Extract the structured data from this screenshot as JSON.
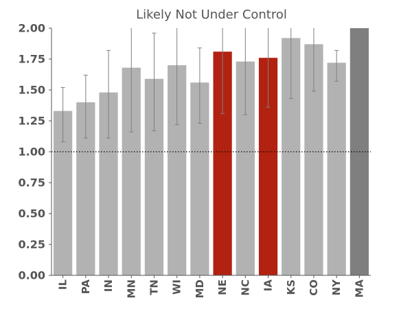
{
  "chart_data": {
    "type": "bar",
    "title": "Likely Not Under Control",
    "xlabel": "",
    "ylabel": "",
    "ylim": [
      0,
      2.0
    ],
    "yticks": [
      "0.00",
      "0.25",
      "0.50",
      "0.75",
      "1.00",
      "1.25",
      "1.50",
      "1.75",
      "2.00"
    ],
    "reference_line": 1.0,
    "categories": [
      "IL",
      "PA",
      "IN",
      "MN",
      "TN",
      "WI",
      "MD",
      "NE",
      "NC",
      "IA",
      "KS",
      "CO",
      "NY",
      "MA"
    ],
    "values": [
      1.33,
      1.4,
      1.48,
      1.68,
      1.59,
      1.7,
      1.56,
      1.81,
      1.73,
      1.76,
      1.92,
      1.87,
      1.72,
      2.0
    ],
    "error_low": [
      1.08,
      1.11,
      1.11,
      1.16,
      1.17,
      1.22,
      1.23,
      1.31,
      1.3,
      1.36,
      1.43,
      1.49,
      1.57,
      null
    ],
    "error_high": [
      1.52,
      1.62,
      1.82,
      2.0,
      1.96,
      2.0,
      1.84,
      2.0,
      2.0,
      2.0,
      2.0,
      2.0,
      1.82,
      null
    ],
    "bar_colors": [
      "#b2b2b2",
      "#b2b2b2",
      "#b2b2b2",
      "#b2b2b2",
      "#b2b2b2",
      "#b2b2b2",
      "#b2b2b2",
      "#b22211",
      "#b2b2b2",
      "#b22211",
      "#b2b2b2",
      "#b2b2b2",
      "#b2b2b2",
      "#7f7f7f"
    ],
    "grid": false
  }
}
